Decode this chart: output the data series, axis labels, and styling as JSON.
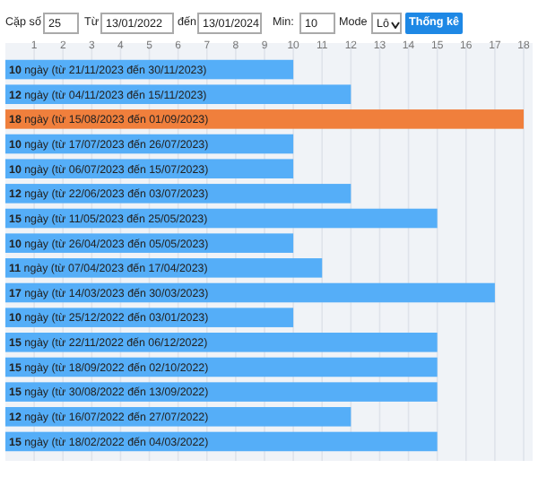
{
  "chart_data": {
    "type": "bar",
    "orientation": "horizontal",
    "categories": [
      null,
      null,
      null,
      null,
      null,
      null,
      null,
      null,
      null,
      null,
      null,
      null,
      null,
      null,
      null,
      null
    ],
    "values": [
      10,
      12,
      18,
      10,
      10,
      12,
      15,
      10,
      11,
      17,
      10,
      15,
      15,
      15,
      12,
      15
    ],
    "colors": [
      "#55aef8",
      "#55aef8",
      "#f07f3c",
      "#55aef8",
      "#55aef8",
      "#55aef8",
      "#55aef8",
      "#55aef8",
      "#55aef8",
      "#55aef8",
      "#55aef8",
      "#55aef8",
      "#55aef8",
      "#55aef8",
      "#55aef8",
      "#55aef8"
    ],
    "value_labels": [
      "10 ngày (từ 21/11/2023 đến 30/11/2023)",
      "12 ngày (từ 04/11/2023 đến 15/11/2023)",
      "18 ngày (từ 15/08/2023 đến 01/09/2023)",
      "10 ngày (từ 17/07/2023 đến 26/07/2023)",
      "10 ngày (từ 06/07/2023 đến 15/07/2023)",
      "12 ngày (từ 22/06/2023 đến 03/07/2023)",
      "15 ngày (từ 11/05/2023 đến 25/05/2023)",
      "10 ngày (từ 26/04/2023 đến 05/05/2023)",
      "11 ngày (từ 07/04/2023 đến 17/04/2023)",
      "17 ngày (từ 14/03/2023 đến 30/03/2023)",
      "10 ngày (từ 25/12/2022 đến 03/01/2023)",
      "15 ngày (từ 22/11/2022 đến 06/12/2022)",
      "15 ngày (từ 18/09/2022 đến 02/10/2022)",
      "15 ngày (từ 30/08/2022 đến 13/09/2022)",
      "12 ngày (từ 16/07/2022 đến 27/07/2022)",
      "15 ngày (từ 18/02/2022 đến 04/03/2022)"
    ],
    "xlim": [
      0,
      18
    ],
    "xticks": [
      1,
      2,
      3,
      4,
      5,
      6,
      7,
      8,
      9,
      10,
      11,
      12,
      13,
      14,
      15,
      16,
      17,
      18
    ],
    "grid": "x",
    "annotations": [
      "Cặp số",
      "25",
      "Từ",
      "13/01/2022",
      "đến",
      "13/01/2024",
      "Min:",
      "10",
      "Mode",
      "Lô",
      "Thống kê"
    ]
  }
}
